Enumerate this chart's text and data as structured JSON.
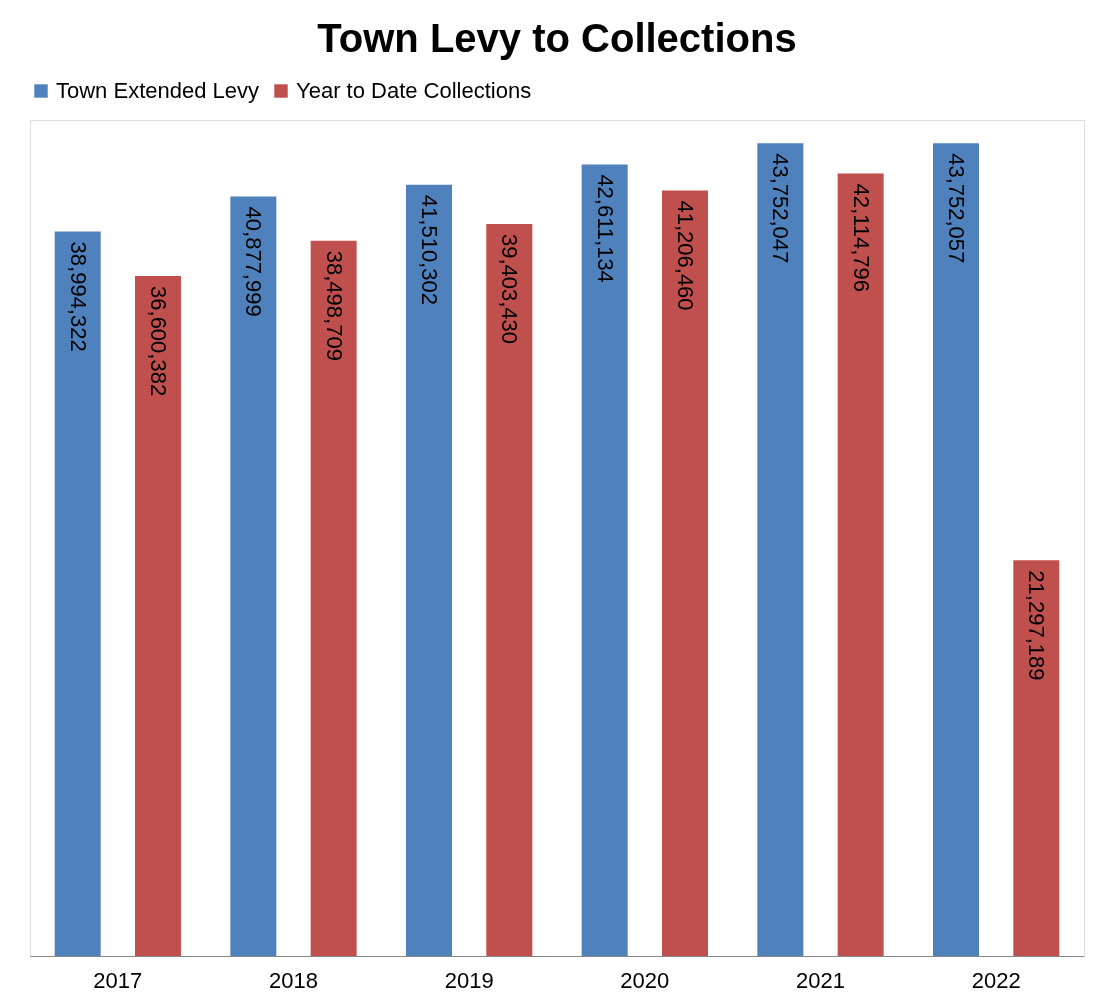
{
  "chart_data": {
    "type": "bar",
    "title": "Town Levy to Collections",
    "categories": [
      "2017",
      "2018",
      "2019",
      "2020",
      "2021",
      "2022"
    ],
    "series": [
      {
        "name": "Town Extended Levy",
        "color": "#4f81bd",
        "values": [
          38994322,
          40877999,
          41510302,
          42611134,
          43752047,
          43752057
        ],
        "value_labels": [
          "38,994,322",
          "40,877,999",
          "41,510,302",
          "42,611,134",
          "43,752,047",
          "43,752,057"
        ]
      },
      {
        "name": "Year to Date Collections",
        "color": "#c0504d",
        "values": [
          36600382,
          38498709,
          39403430,
          41206460,
          42114796,
          21297189
        ],
        "value_labels": [
          "36,600,382",
          "38,498,709",
          "39,403,430",
          "41,206,460",
          "42,114,796",
          "21,297,189"
        ]
      }
    ],
    "legend": "top",
    "grid": false
  }
}
